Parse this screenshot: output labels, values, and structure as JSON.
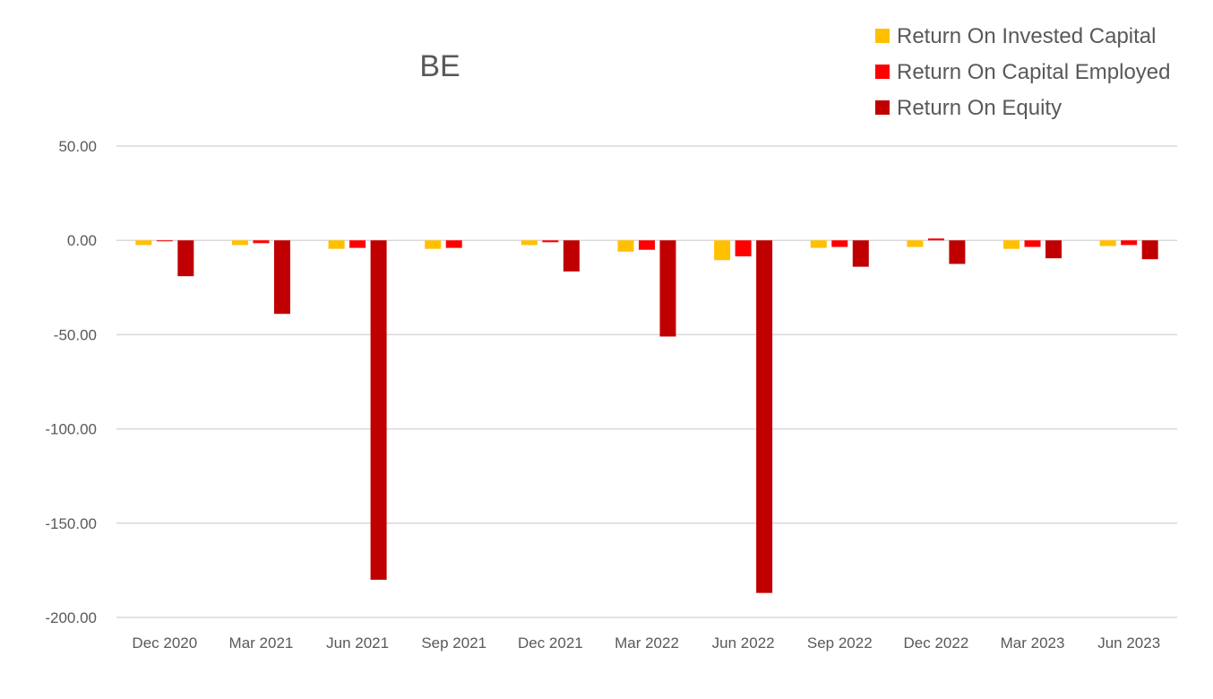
{
  "chart_data": {
    "type": "bar",
    "title": "BE",
    "xlabel": "",
    "ylabel": "",
    "ylim": [
      -200,
      50
    ],
    "yticks": [
      50,
      0,
      -50,
      -100,
      -150,
      -200
    ],
    "ytick_labels": [
      "50.00",
      "0.00",
      "-50.00",
      "-100.00",
      "-150.00",
      "-200.00"
    ],
    "grid": true,
    "legend_position": "top-right",
    "categories": [
      "Dec 2020",
      "Mar 2021",
      "Jun 2021",
      "Sep 2021",
      "Dec 2021",
      "Mar 2022",
      "Jun 2022",
      "Sep 2022",
      "Dec 2022",
      "Mar 2023",
      "Jun 2023"
    ],
    "series": [
      {
        "name": "Return On Invested Capital",
        "color": "#FFC000",
        "values": [
          -2.5,
          -2.5,
          -4.5,
          -4.5,
          -2.5,
          -6.0,
          -10.5,
          -4.0,
          -3.5,
          -4.5,
          -3.0
        ]
      },
      {
        "name": "Return On Capital Employed",
        "color": "#FF0000",
        "values": [
          -0.5,
          -1.5,
          -4.0,
          -4.0,
          -1.0,
          -5.0,
          -8.5,
          -3.5,
          1.0,
          -3.5,
          -2.5
        ]
      },
      {
        "name": "Return On Equity",
        "color": "#C00000",
        "values": [
          -19.0,
          -39.0,
          -180.0,
          0,
          -16.5,
          -51.0,
          -187.0,
          -14.0,
          -12.5,
          -9.5,
          -10.0
        ]
      }
    ]
  }
}
